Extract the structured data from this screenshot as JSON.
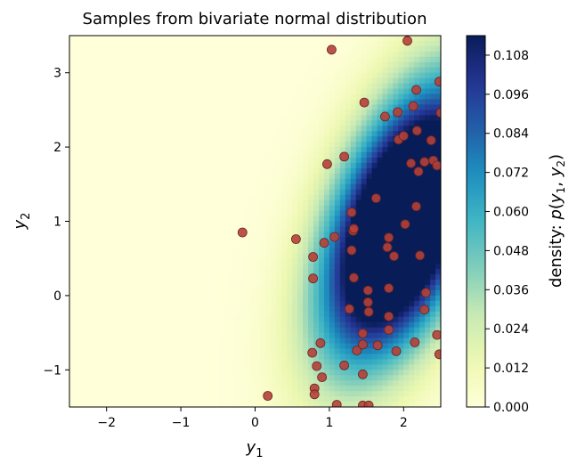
{
  "chart_data": {
    "type": "heatmap",
    "title": "Samples from bivariate normal distribution",
    "xlabel": "y1",
    "ylabel": "y2",
    "xlim": [
      -2.5,
      2.5
    ],
    "ylim": [
      -1.5,
      3.5
    ],
    "xticks": [
      -2,
      -1,
      0,
      1,
      2
    ],
    "yticks": [
      -1,
      0,
      1,
      2,
      3
    ],
    "x_tick_labels": [
      "−2",
      "−1",
      "0",
      "1",
      "2"
    ],
    "y_tick_labels": [
      "−1",
      "0",
      "1",
      "2",
      "3"
    ],
    "density_model": {
      "mean": [
        2.0,
        1.0
      ],
      "std": [
        0.7,
        1.2
      ],
      "rho": 0.5
    },
    "colormap": "YlGnBu",
    "colormap_stops": [
      "#ffffd9",
      "#edf8b1",
      "#c7e9b4",
      "#7fcdbb",
      "#41b6c4",
      "#1d91c0",
      "#225ea8",
      "#253494",
      "#081d58"
    ],
    "colorbar": {
      "label": "density: p(y1, y2)",
      "range": [
        0.0,
        0.114
      ],
      "ticks": [
        0.0,
        0.012,
        0.024,
        0.036,
        0.048,
        0.06,
        0.072,
        0.084,
        0.096,
        0.108
      ],
      "tick_labels": [
        "0.000",
        "0.012",
        "0.024",
        "0.036",
        "0.048",
        "0.060",
        "0.072",
        "0.084",
        "0.096",
        "0.108"
      ]
    },
    "samples": {
      "marker_color": "#b5403a",
      "edge_color": "#6b2420",
      "points": [
        [
          -0.17,
          0.85
        ],
        [
          0.17,
          -1.35
        ],
        [
          0.55,
          0.76
        ],
        [
          0.78,
          0.52
        ],
        [
          0.78,
          0.23
        ],
        [
          0.77,
          -0.77
        ],
        [
          0.8,
          -1.25
        ],
        [
          0.8,
          -1.33
        ],
        [
          0.83,
          -0.95
        ],
        [
          0.88,
          -0.64
        ],
        [
          0.9,
          -1.1
        ],
        [
          0.93,
          0.71
        ],
        [
          0.97,
          1.77
        ],
        [
          1.03,
          3.31
        ],
        [
          1.07,
          0.79
        ],
        [
          1.1,
          -1.47
        ],
        [
          1.2,
          1.87
        ],
        [
          1.2,
          -0.94
        ],
        [
          1.27,
          -0.18
        ],
        [
          1.3,
          0.61
        ],
        [
          1.3,
          1.12
        ],
        [
          1.32,
          0.87
        ],
        [
          1.33,
          0.9
        ],
        [
          1.33,
          0.24
        ],
        [
          1.37,
          -0.74
        ],
        [
          1.45,
          -0.51
        ],
        [
          1.45,
          -0.66
        ],
        [
          1.45,
          -1.06
        ],
        [
          1.45,
          -1.48
        ],
        [
          1.47,
          2.6
        ],
        [
          1.52,
          0.07
        ],
        [
          1.52,
          -0.09
        ],
        [
          1.53,
          -0.22
        ],
        [
          1.53,
          -1.48
        ],
        [
          1.63,
          1.31
        ],
        [
          1.65,
          -0.67
        ],
        [
          1.75,
          2.41
        ],
        [
          1.78,
          0.65
        ],
        [
          1.8,
          0.78
        ],
        [
          1.8,
          0.1
        ],
        [
          1.8,
          -0.28
        ],
        [
          1.8,
          -0.46
        ],
        [
          1.87,
          0.53
        ],
        [
          1.9,
          -0.75
        ],
        [
          1.92,
          2.47
        ],
        [
          1.93,
          2.1
        ],
        [
          2.0,
          2.15
        ],
        [
          2.02,
          0.96
        ],
        [
          2.05,
          3.43
        ],
        [
          2.1,
          1.78
        ],
        [
          2.13,
          2.55
        ],
        [
          2.15,
          -0.63
        ],
        [
          2.17,
          2.77
        ],
        [
          2.17,
          1.2
        ],
        [
          2.18,
          2.22
        ],
        [
          2.2,
          1.67
        ],
        [
          2.22,
          0.54
        ],
        [
          2.28,
          1.8
        ],
        [
          2.28,
          -0.19
        ],
        [
          2.3,
          0.04
        ],
        [
          2.37,
          2.09
        ],
        [
          2.4,
          1.82
        ],
        [
          2.45,
          -0.53
        ],
        [
          2.45,
          1.75
        ],
        [
          2.48,
          2.88
        ],
        [
          2.48,
          -0.79
        ],
        [
          2.5,
          2.46
        ]
      ]
    }
  }
}
